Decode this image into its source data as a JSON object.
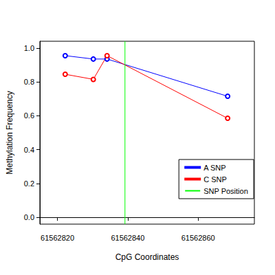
{
  "chart_data": {
    "type": "line",
    "x_label": "CpG Coordinates",
    "y_label": "Methylation Frequency",
    "x": [
      61562822.2,
      61562830.2,
      61562834.1,
      61562868.4
    ],
    "series": [
      {
        "name": "A SNP",
        "color": "#0000ff",
        "marker": "open_circle",
        "values": [
          0.955,
          0.935,
          0.935,
          0.715
        ]
      },
      {
        "name": "C SNP",
        "color": "#ff0000",
        "marker": "open_circle",
        "values": [
          0.845,
          0.815,
          0.955,
          0.585
        ]
      },
      {
        "name": "SNP Position",
        "color": "#00ff00",
        "type": "vline",
        "x": 61562839.2
      }
    ],
    "xlim": [
      61562815,
      61562876
    ],
    "ylim": [
      -0.04,
      1.04
    ],
    "xticks": [
      61562820,
      61562840,
      61562860
    ],
    "yticks": [
      {
        "value": 0,
        "label": "0.0"
      },
      {
        "value": 0.2,
        "label": "0.2"
      },
      {
        "value": 0.4,
        "label": "0.4"
      },
      {
        "value": 0.6,
        "label": "0.6"
      },
      {
        "value": 0.8,
        "label": "0.8"
      },
      {
        "value": 1,
        "label": "1.0"
      }
    ],
    "grid": false,
    "legend": "right"
  }
}
